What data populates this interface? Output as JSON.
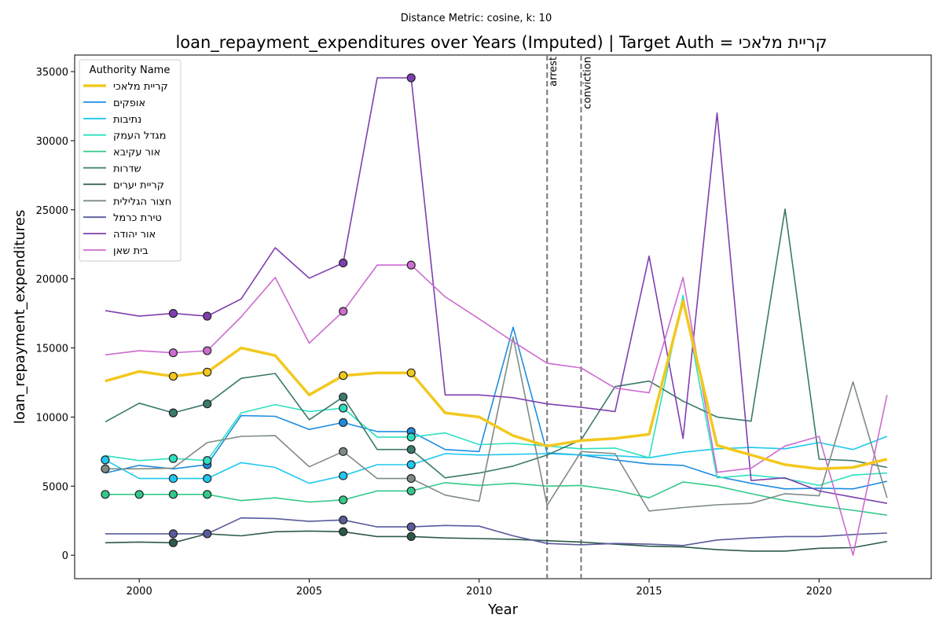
{
  "chart_data": {
    "type": "line",
    "suptitle": "Distance Metric: cosine, k: 10",
    "title": "loan_repayment_expenditures over Years (Imputed) | Target Auth = קריית מלאכי",
    "xlabel": "Year",
    "ylabel": "loan_repayment_expenditures",
    "xlim": [
      1998.1,
      2023.3
    ],
    "ylim": [
      -1700,
      36200
    ],
    "xticks": [
      2000,
      2005,
      2010,
      2015,
      2020
    ],
    "yticks": [
      0,
      5000,
      10000,
      15000,
      20000,
      25000,
      30000,
      35000
    ],
    "grid": false,
    "legend": {
      "title": "Authority Name",
      "placement": "upper left"
    },
    "x": [
      1999,
      2000,
      2001,
      2002,
      2003,
      2004,
      2005,
      2006,
      2007,
      2008,
      2009,
      2010,
      2011,
      2012,
      2013,
      2014,
      2015,
      2016,
      2017,
      2018,
      2019,
      2020,
      2021,
      2022
    ],
    "vlines": [
      {
        "x": 2012,
        "label": "arrest"
      },
      {
        "x": 2013,
        "label": "conviction"
      }
    ],
    "series": [
      {
        "name": "קריית מלאכי",
        "color": "#f2c81e",
        "target": true,
        "values": [
          12600,
          13300,
          12950,
          13250,
          15000,
          14450,
          11600,
          13000,
          13200,
          13200,
          10300,
          10000,
          8650,
          7900,
          8300,
          8450,
          8750,
          18400,
          7950,
          7250,
          6550,
          6250,
          6350,
          6950
        ],
        "imputed_years": [
          2001,
          2002,
          2006,
          2008
        ]
      },
      {
        "name": "אופקים",
        "color": "#1e8de0",
        "values": [
          5950,
          6500,
          6250,
          6550,
          10100,
          10050,
          9100,
          9600,
          8950,
          8950,
          7650,
          7500,
          16500,
          7400,
          7250,
          6900,
          6600,
          6500,
          5700,
          5200,
          4800,
          4850,
          4800,
          5350
        ],
        "imputed_years": [
          2002,
          2006,
          2008
        ]
      },
      {
        "name": "נתיבות",
        "color": "#1ec8f0",
        "values": [
          6900,
          5550,
          5550,
          5550,
          6700,
          6350,
          5200,
          5750,
          6550,
          6550,
          7350,
          7250,
          7300,
          7350,
          7250,
          7200,
          7050,
          7450,
          7700,
          7800,
          7700,
          8150,
          7650,
          8600
        ],
        "imputed_years": [
          1999,
          2001,
          2002,
          2006,
          2008
        ]
      },
      {
        "name": "מגדל העמק",
        "color": "#2ee0c0",
        "values": [
          7200,
          6850,
          7000,
          6850,
          10300,
          10900,
          10400,
          10650,
          8550,
          8550,
          8850,
          8000,
          8100,
          7900,
          7700,
          7750,
          7050,
          18800,
          5600,
          5800,
          5550,
          5050,
          5800,
          5950
        ],
        "imputed_years": [
          2001,
          2002,
          2006,
          2008
        ]
      },
      {
        "name": "אור עקיבא",
        "color": "#33c98a",
        "values": [
          4400,
          4400,
          4400,
          4400,
          3950,
          4150,
          3850,
          4000,
          4650,
          4650,
          5250,
          5050,
          5200,
          5000,
          5050,
          4700,
          4150,
          5300,
          5000,
          4450,
          3950,
          3550,
          3250,
          2900
        ],
        "imputed_years": [
          1999,
          2000,
          2001,
          2002,
          2006,
          2008
        ]
      },
      {
        "name": "שדרות",
        "color": "#3a7a6a",
        "values": [
          9650,
          11000,
          10300,
          10950,
          12800,
          13150,
          9800,
          11450,
          7650,
          7650,
          5600,
          5950,
          6450,
          7250,
          8350,
          12200,
          12600,
          11150,
          10000,
          9700,
          25050,
          6950,
          6850,
          6350
        ],
        "imputed_years": [
          2001,
          2002,
          2006,
          2008
        ]
      },
      {
        "name": "קריית יערים",
        "color": "#2c5a48",
        "values": [
          900,
          950,
          900,
          1550,
          1400,
          1700,
          1750,
          1700,
          1350,
          1350,
          1250,
          1200,
          1150,
          1050,
          950,
          800,
          650,
          600,
          400,
          300,
          300,
          500,
          550,
          1000
        ],
        "imputed_years": [
          2001,
          2006,
          2008
        ]
      },
      {
        "name": "חצור הגלילית",
        "color": "#7f8a86",
        "values": [
          6250,
          6250,
          6300,
          8150,
          8600,
          8650,
          6400,
          7500,
          5550,
          5550,
          4350,
          3900,
          15800,
          3600,
          7500,
          7350,
          3200,
          3450,
          3650,
          3750,
          4450,
          4300,
          12550,
          4150
        ],
        "imputed_years": [
          1999,
          2006,
          2008
        ]
      },
      {
        "name": "טירת כרמל",
        "color": "#5a5a9c",
        "values": [
          1550,
          1550,
          1550,
          1550,
          2700,
          2650,
          2450,
          2550,
          2050,
          2050,
          2150,
          2100,
          1400,
          850,
          750,
          850,
          800,
          700,
          1100,
          1250,
          1350,
          1350,
          1500,
          1600
        ],
        "imputed_years": [
          2001,
          2002,
          2006,
          2008
        ]
      },
      {
        "name": "אור יהודה",
        "color": "#7f3fb0",
        "values": [
          17700,
          17300,
          17500,
          17300,
          18550,
          22250,
          20050,
          21150,
          34550,
          34550,
          11600,
          11600,
          11400,
          10950,
          10700,
          10400,
          21650,
          8450,
          32000,
          5400,
          5600,
          4650,
          4200,
          3750
        ],
        "imputed_years": [
          2001,
          2002,
          2006,
          2008
        ]
      },
      {
        "name": "בית שאן",
        "color": "#cc6ccf",
        "values": [
          14500,
          14800,
          14650,
          14800,
          17250,
          20100,
          15350,
          17650,
          21000,
          21000,
          18700,
          17100,
          15450,
          13900,
          13550,
          12100,
          11750,
          20100,
          6000,
          6300,
          7900,
          8600,
          0,
          11600
        ],
        "imputed_years": [
          2001,
          2002,
          2006,
          2008
        ]
      }
    ]
  }
}
